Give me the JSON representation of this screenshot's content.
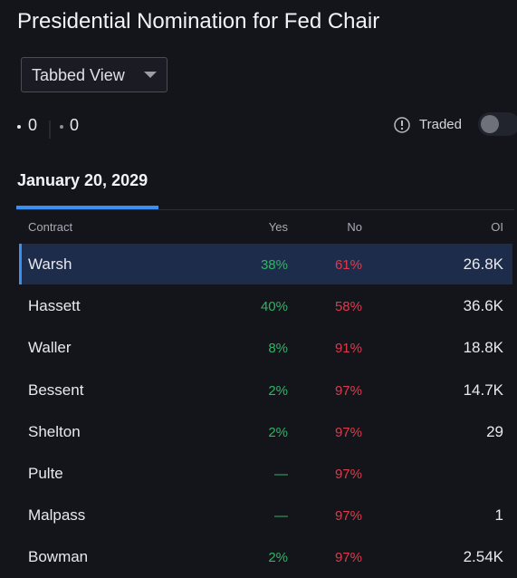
{
  "header": {
    "title": "Presidential Nomination for Fed Chair",
    "view_selector": "Tabbed View"
  },
  "filters": {
    "count_a": "0",
    "count_b": "0",
    "traded_label": "Traded"
  },
  "tab": "January 20, 2029",
  "table": {
    "columns": [
      "Contract",
      "Yes",
      "No",
      "OI"
    ],
    "rows": [
      [
        "Warsh",
        "38%",
        "61%",
        "26.8K"
      ],
      [
        "Hassett",
        "40%",
        "58%",
        "36.6K"
      ],
      [
        "Waller",
        "8%",
        "91%",
        "18.8K"
      ],
      [
        "Bessent",
        "2%",
        "97%",
        "14.7K"
      ],
      [
        "Shelton",
        "2%",
        "97%",
        "29"
      ],
      [
        "Pulte",
        "—",
        "97%",
        null
      ],
      [
        "Malpass",
        "—",
        "97%",
        "1"
      ],
      [
        "Bowman",
        "2%",
        "97%",
        "2.54K"
      ]
    ],
    "selected_row": 0
  }
}
